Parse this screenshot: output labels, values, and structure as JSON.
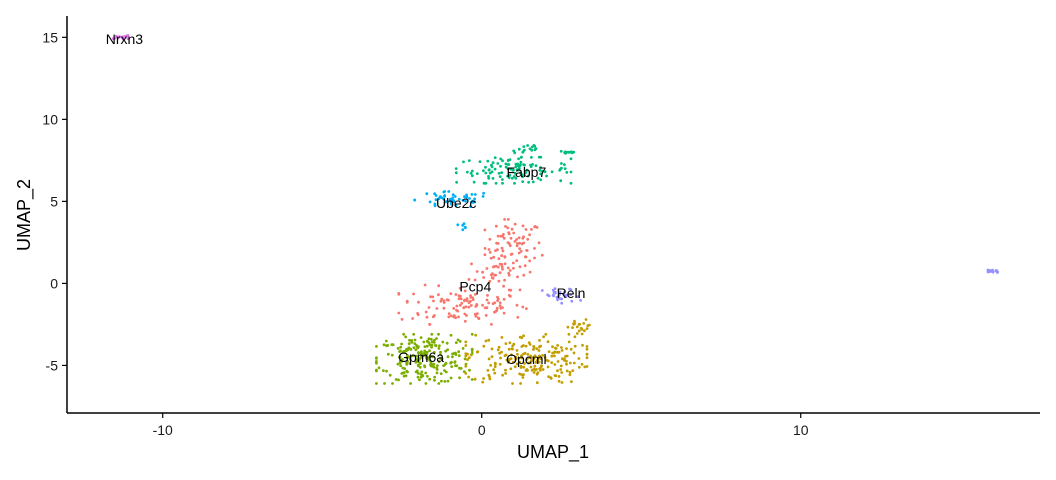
{
  "chart_data": {
    "type": "scatter",
    "title": "",
    "xlabel": "UMAP_1",
    "ylabel": "UMAP_2",
    "xlim": [
      -13,
      17.5
    ],
    "ylim": [
      -7.9,
      16.3
    ],
    "x_ticks": [
      -10,
      0,
      10
    ],
    "y_ticks": [
      -5,
      0,
      5,
      10,
      15
    ],
    "x_tick_labels": [
      "-10",
      "0",
      "10"
    ],
    "y_tick_labels": [
      "-5",
      "0",
      "5",
      "10",
      "15"
    ],
    "grid": false,
    "legend": "none",
    "clusters": [
      {
        "label": "Pcp4",
        "label_x": -0.2,
        "label_y": -0.2,
        "color": "#F8766D",
        "regions": [
          {
            "cx": 1.0,
            "cy": 2.2,
            "rx": 0.9,
            "ry": 1.7,
            "n": 80
          },
          {
            "cx": -0.6,
            "cy": -1.3,
            "rx": 2.0,
            "ry": 1.2,
            "n": 110
          },
          {
            "cx": 0.4,
            "cy": 0.6,
            "rx": 0.8,
            "ry": 1.0,
            "n": 30
          }
        ]
      },
      {
        "label": "Fabp7",
        "label_x": 1.4,
        "label_y": 6.8,
        "color": "#00BF7D",
        "regions": [
          {
            "cx": 1.0,
            "cy": 6.9,
            "rx": 1.8,
            "ry": 0.8,
            "n": 110
          },
          {
            "cx": 1.4,
            "cy": 8.2,
            "rx": 0.5,
            "ry": 0.4,
            "n": 15
          },
          {
            "cx": 2.7,
            "cy": 8.0,
            "rx": 0.3,
            "ry": 0.12,
            "n": 10
          }
        ]
      },
      {
        "label": "Ube2c",
        "label_x": -0.8,
        "label_y": 4.9,
        "color": "#00B0F6",
        "regions": [
          {
            "cx": -0.9,
            "cy": 5.1,
            "rx": 1.2,
            "ry": 0.5,
            "n": 50
          },
          {
            "cx": -0.6,
            "cy": 3.5,
            "rx": 0.2,
            "ry": 0.6,
            "n": 6
          }
        ]
      },
      {
        "label": "Gpm6a",
        "label_x": -1.9,
        "label_y": -4.5,
        "color": "#7CAE00",
        "regions": [
          {
            "cx": -1.8,
            "cy": -4.6,
            "rx": 1.5,
            "ry": 1.5,
            "n": 230
          }
        ]
      },
      {
        "label": "Opcml",
        "label_x": 1.4,
        "label_y": -4.6,
        "color": "#C39E00",
        "regions": [
          {
            "cx": 1.4,
            "cy": -4.6,
            "rx": 1.9,
            "ry": 1.5,
            "n": 210
          },
          {
            "cx": 3.1,
            "cy": -2.7,
            "rx": 0.4,
            "ry": 0.5,
            "n": 20
          }
        ]
      },
      {
        "label": "Reln",
        "label_x": 2.8,
        "label_y": -0.6,
        "color": "#9590FF",
        "regions": [
          {
            "cx": 2.5,
            "cy": -0.8,
            "rx": 0.6,
            "ry": 0.5,
            "n": 30
          },
          {
            "cx": 16.0,
            "cy": 0.75,
            "rx": 0.25,
            "ry": 0.12,
            "n": 15
          }
        ]
      },
      {
        "label": "Nrxn3",
        "label_x": -11.2,
        "label_y": 14.9,
        "color": "#E76BF3",
        "regions": [
          {
            "cx": -11.3,
            "cy": 15.0,
            "rx": 0.25,
            "ry": 0.12,
            "n": 12
          }
        ]
      }
    ]
  }
}
